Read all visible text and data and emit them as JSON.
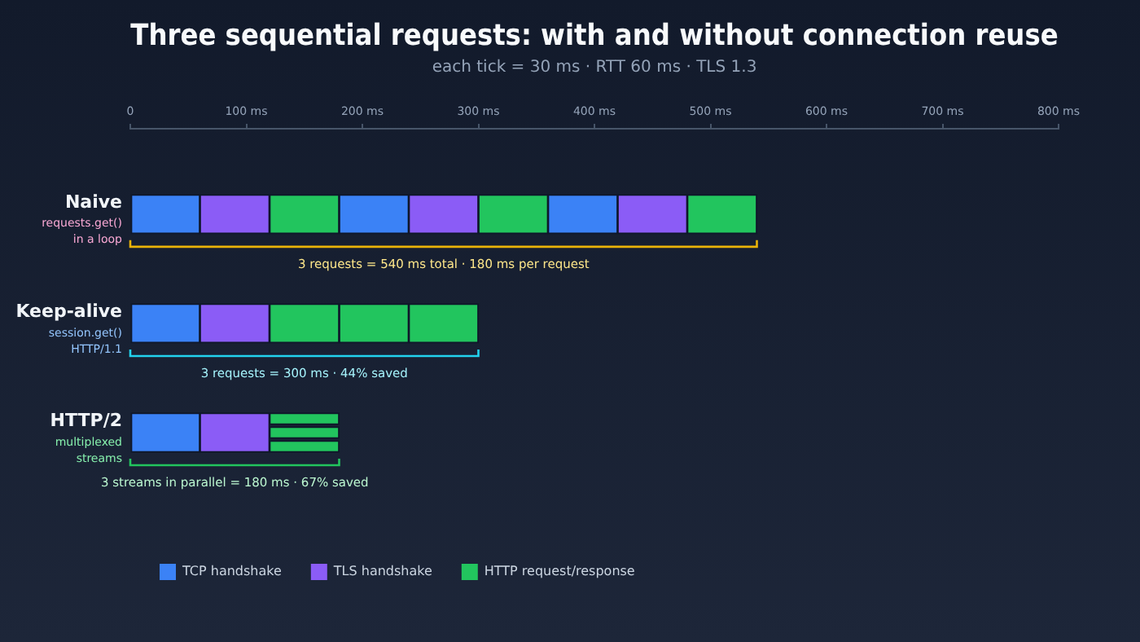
{
  "chart_data": {
    "type": "bar",
    "orientation": "horizontal",
    "title": "Three sequential requests: with and without connection reuse",
    "subtitle": "each tick = 30 ms · RTT 60 ms · TLS 1.3",
    "categories": [
      "Naive",
      "Keep-alive",
      "HTTP/2"
    ],
    "series": [
      {
        "name": "TCP handshake",
        "color": "#3b82f6",
        "base": [
          0,
          0,
          0
        ],
        "values": [
          60,
          60,
          60
        ]
      },
      {
        "name": "TLS handshake",
        "color": "#8b5cf6",
        "base": [
          60,
          60,
          60
        ],
        "values": [
          60,
          60,
          60
        ]
      },
      {
        "name": "HTTP request/response",
        "color": "#22c55e",
        "base": [
          120,
          120,
          120
        ],
        "values": [
          60,
          60,
          60
        ]
      },
      {
        "color": "#3b82f6",
        "base": [
          180,
          null,
          null
        ],
        "values": [
          60,
          null,
          null
        ]
      },
      {
        "color": "#8b5cf6",
        "base": [
          240,
          null,
          null
        ],
        "values": [
          60,
          null,
          null
        ]
      },
      {
        "color": "#22c55e",
        "base": [
          300,
          180,
          120
        ],
        "values": [
          60,
          60,
          60
        ]
      },
      {
        "color": "#3b82f6",
        "base": [
          360,
          null,
          null
        ],
        "values": [
          60,
          null,
          null
        ]
      },
      {
        "color": "#8b5cf6",
        "base": [
          420,
          null,
          null
        ],
        "values": [
          60,
          null,
          null
        ]
      },
      {
        "color": "#22c55e",
        "base": [
          480,
          240,
          120
        ],
        "values": [
          60,
          60,
          60
        ]
      }
    ],
    "xlim": [
      0,
      800
    ],
    "xticks": [
      0,
      {
        "value": 100,
        "label": "100 ms"
      },
      {
        "value": 200,
        "label": "200 ms"
      },
      {
        "value": 300,
        "label": "300 ms"
      },
      {
        "value": 400,
        "label": "400 ms"
      },
      {
        "value": 500,
        "label": "500 ms"
      },
      {
        "value": 600,
        "label": "600 ms"
      },
      {
        "value": 700,
        "label": "700 ms"
      },
      {
        "value": 800,
        "label": "800 ms"
      }
    ],
    "legend": "bottom left",
    "annotations": [
      "requests.get()\nin a loop",
      "session.get()\nHTTP/1.1",
      "multiplexed\nstreams",
      "3 requests = 540 ms total · 180 ms per request",
      "3 requests = 300 ms · 44% saved",
      "3 streams in parallel = 180 ms · 67% saved"
    ]
  }
}
